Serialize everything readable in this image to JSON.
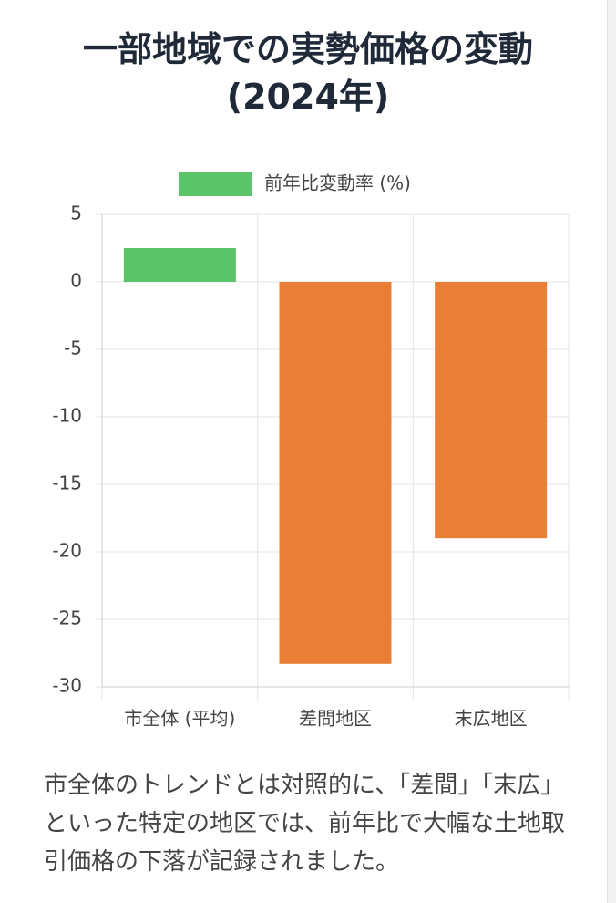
{
  "chart_data": {
    "type": "bar",
    "title": "一部地域での実勢価格の変動 (2024年)",
    "categories": [
      "市全体 (平均)",
      "差間地区",
      "末広地区"
    ],
    "series": [
      {
        "name": "前年比変動率 (%)",
        "color": "#5cc46a",
        "bar_colors": [
          "#5cc46a",
          "#e97f37",
          "#e97f37"
        ],
        "values": [
          2.5,
          -28.3,
          -19.0
        ]
      }
    ],
    "ylim": [
      -30,
      5
    ],
    "yticks": [
      5,
      0,
      -5,
      -10,
      -15,
      -20,
      -25,
      -30
    ],
    "grid": true,
    "legend": "top"
  },
  "description": "市全体のトレンドとは対照的に、「差間」「末広」といった特定の地区では、前年比で大幅な土地取引価格の下落が記録されました。"
}
